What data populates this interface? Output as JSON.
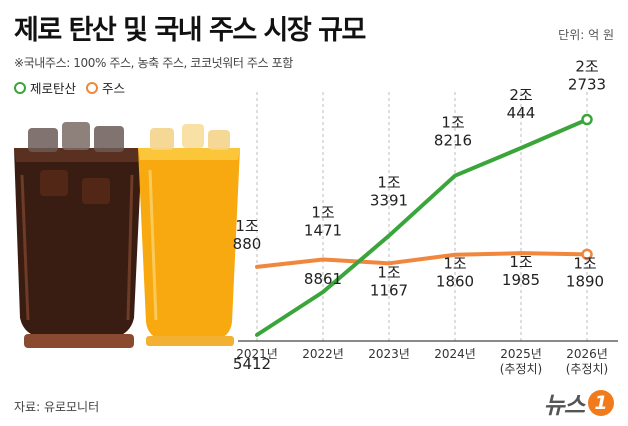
{
  "header": {
    "title": "제로 탄산 및 국내 주스 시장 규모",
    "unit": "단위: 억 원",
    "note": "※국내주스: 100% 주스, 농축 주스, 코코넛워터 주스 포함"
  },
  "source": "자료: 유로모니터",
  "logo": {
    "text": "뉴스",
    "badge": "1"
  },
  "colors": {
    "zero_soda": "#3aa53a",
    "juice": "#f0873c"
  },
  "chart_data": {
    "type": "line",
    "categories": [
      "2021년",
      "2022년",
      "2023년",
      "2024년",
      "2025년\n(추정치)",
      "2026년\n(추정치)"
    ],
    "series": [
      {
        "name": "제로탄산",
        "values": [
          5412,
          8861,
          13391,
          18216,
          20444,
          22733
        ],
        "labels": [
          "5412",
          "8861",
          "1조\n3391",
          "1조\n8216",
          "2조\n444",
          "2조\n2733"
        ]
      },
      {
        "name": "주스",
        "values": [
          10880,
          11471,
          11167,
          11860,
          11985,
          11890
        ],
        "labels": [
          "1조\n880",
          "1조\n1471",
          "1조\n1167",
          "1조\n1860",
          "1조\n1985",
          "1조\n1890"
        ]
      }
    ],
    "legend": "top-left",
    "grid": "vertical-dashed"
  }
}
